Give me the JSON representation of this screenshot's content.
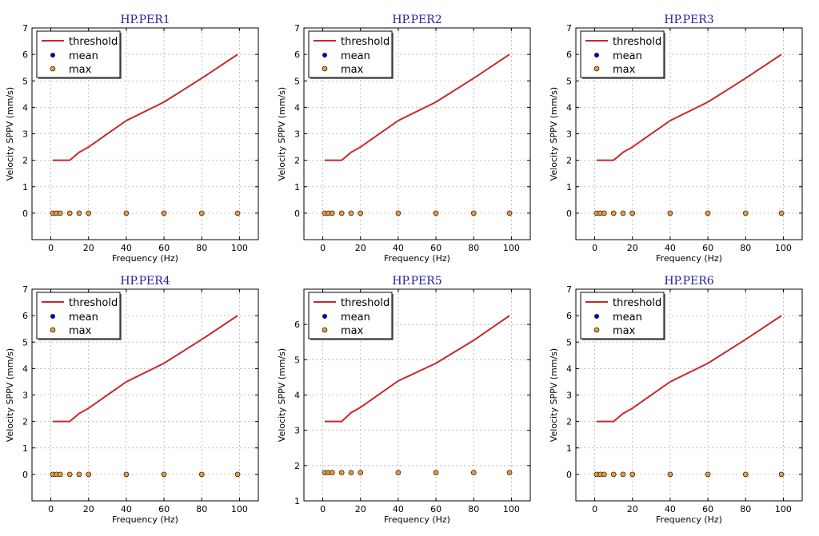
{
  "colors": {
    "threshold": "#c8282a",
    "mean": "#0b0b8c",
    "max": "#e69a3a",
    "title": "#1f1f9e",
    "grid": "#b0b0b0"
  },
  "chart_data": [
    {
      "type": "line",
      "title": "HP.PER1",
      "xlabel": "Frequency (Hz)",
      "ylabel": "Velocity SPPV (mm/s)",
      "xlim": [
        -10,
        110
      ],
      "ylim": [
        -1,
        7
      ],
      "xticks": [
        "0",
        "20",
        "40",
        "60",
        "80",
        "100"
      ],
      "xtick_values": [
        0,
        20,
        40,
        60,
        80,
        100
      ],
      "yticks": [
        "0",
        "1",
        "2",
        "3",
        "4",
        "5",
        "6",
        "7"
      ],
      "ytick_values": [
        0,
        1,
        2,
        3,
        4,
        5,
        6,
        7
      ],
      "grid": true,
      "legend_position": "top-left",
      "series": [
        {
          "name": "threshold",
          "kind": "line",
          "x": [
            1,
            10,
            15,
            20,
            40,
            60,
            80,
            99
          ],
          "y": [
            2.0,
            2.0,
            2.3,
            2.5,
            3.5,
            4.2,
            5.1,
            6.0
          ]
        },
        {
          "name": "mean",
          "kind": "scatter",
          "x": [
            1,
            3,
            5,
            10,
            15,
            20,
            40,
            60,
            80,
            99
          ],
          "y": [
            0,
            0,
            0,
            0,
            0,
            0,
            0,
            0,
            0,
            0
          ]
        },
        {
          "name": "max",
          "kind": "scatter",
          "x": [
            1,
            3,
            5,
            10,
            15,
            20,
            40,
            60,
            80,
            99
          ],
          "y": [
            0,
            0,
            0,
            0,
            0,
            0,
            0,
            0,
            0,
            0
          ]
        }
      ]
    },
    {
      "type": "line",
      "title": "HP.PER2",
      "xlabel": "Frequency (Hz)",
      "ylabel": "Velocity SPPV (mm/s)",
      "xlim": [
        -10,
        110
      ],
      "ylim": [
        -1,
        7
      ],
      "xticks": [
        "0",
        "20",
        "40",
        "60",
        "80",
        "100"
      ],
      "xtick_values": [
        0,
        20,
        40,
        60,
        80,
        100
      ],
      "yticks": [
        "0",
        "1",
        "2",
        "3",
        "4",
        "5",
        "6",
        "7"
      ],
      "ytick_values": [
        0,
        1,
        2,
        3,
        4,
        5,
        6,
        7
      ],
      "grid": true,
      "legend_position": "top-left",
      "series": [
        {
          "name": "threshold",
          "kind": "line",
          "x": [
            1,
            10,
            15,
            20,
            40,
            60,
            80,
            99
          ],
          "y": [
            2.0,
            2.0,
            2.3,
            2.5,
            3.5,
            4.2,
            5.1,
            6.0
          ]
        },
        {
          "name": "mean",
          "kind": "scatter",
          "x": [
            1,
            3,
            5,
            10,
            15,
            20,
            40,
            60,
            80,
            99
          ],
          "y": [
            0,
            0,
            0,
            0,
            0,
            0,
            0,
            0,
            0,
            0
          ]
        },
        {
          "name": "max",
          "kind": "scatter",
          "x": [
            1,
            3,
            5,
            10,
            15,
            20,
            40,
            60,
            80,
            99
          ],
          "y": [
            0,
            0,
            0,
            0,
            0,
            0,
            0,
            0,
            0,
            0
          ]
        }
      ]
    },
    {
      "type": "line",
      "title": "HP.PER3",
      "xlabel": "Frequency (Hz)",
      "ylabel": "Velocity SPPV (mm/s)",
      "xlim": [
        -10,
        110
      ],
      "ylim": [
        -1,
        7
      ],
      "xticks": [
        "0",
        "20",
        "40",
        "60",
        "80",
        "100"
      ],
      "xtick_values": [
        0,
        20,
        40,
        60,
        80,
        100
      ],
      "yticks": [
        "0",
        "1",
        "2",
        "3",
        "4",
        "5",
        "6",
        "7"
      ],
      "ytick_values": [
        0,
        1,
        2,
        3,
        4,
        5,
        6,
        7
      ],
      "grid": true,
      "legend_position": "top-left",
      "series": [
        {
          "name": "threshold",
          "kind": "line",
          "x": [
            1,
            10,
            15,
            20,
            40,
            60,
            80,
            99
          ],
          "y": [
            2.0,
            2.0,
            2.3,
            2.5,
            3.5,
            4.2,
            5.1,
            6.0
          ]
        },
        {
          "name": "mean",
          "kind": "scatter",
          "x": [
            1,
            3,
            5,
            10,
            15,
            20,
            40,
            60,
            80,
            99
          ],
          "y": [
            0,
            0,
            0,
            0,
            0,
            0,
            0,
            0,
            0,
            0
          ]
        },
        {
          "name": "max",
          "kind": "scatter",
          "x": [
            1,
            3,
            5,
            10,
            15,
            20,
            40,
            60,
            80,
            99
          ],
          "y": [
            0,
            0,
            0,
            0,
            0,
            0,
            0,
            0,
            0,
            0
          ]
        }
      ]
    },
    {
      "type": "line",
      "title": "HP.PER4",
      "xlabel": "Frequency (Hz)",
      "ylabel": "Velocity SPPV (mm/s)",
      "xlim": [
        -10,
        110
      ],
      "ylim": [
        -1,
        7
      ],
      "xticks": [
        "0",
        "20",
        "40",
        "60",
        "80",
        "100"
      ],
      "xtick_values": [
        0,
        20,
        40,
        60,
        80,
        100
      ],
      "yticks": [
        "0",
        "1",
        "2",
        "3",
        "4",
        "5",
        "6",
        "7"
      ],
      "ytick_values": [
        0,
        1,
        2,
        3,
        4,
        5,
        6,
        7
      ],
      "grid": true,
      "legend_position": "top-left",
      "series": [
        {
          "name": "threshold",
          "kind": "line",
          "x": [
            1,
            10,
            15,
            20,
            40,
            60,
            80,
            99
          ],
          "y": [
            2.0,
            2.0,
            2.3,
            2.5,
            3.5,
            4.2,
            5.1,
            6.0
          ]
        },
        {
          "name": "mean",
          "kind": "scatter",
          "x": [
            1,
            3,
            5,
            10,
            15,
            20,
            40,
            60,
            80,
            99
          ],
          "y": [
            0,
            0,
            0,
            0,
            0,
            0,
            0,
            0,
            0,
            0
          ]
        },
        {
          "name": "max",
          "kind": "scatter",
          "x": [
            1,
            3,
            5,
            10,
            15,
            20,
            40,
            60,
            80,
            99
          ],
          "y": [
            0,
            0,
            0,
            0,
            0,
            0,
            0,
            0,
            0,
            0
          ]
        }
      ]
    },
    {
      "type": "line",
      "title": "HP.PER5",
      "xlabel": "Frequency (Hz)",
      "ylabel": "Velocity SPPV (mm/s)",
      "xlim": [
        -10,
        110
      ],
      "ylim": [
        1,
        7
      ],
      "xticks": [
        "0",
        "20",
        "40",
        "60",
        "80",
        "100"
      ],
      "xtick_values": [
        0,
        20,
        40,
        60,
        80,
        100
      ],
      "yticks": [
        "1",
        "2",
        "3",
        "4",
        "5",
        "6"
      ],
      "ytick_values": [
        1,
        2,
        3,
        4,
        5,
        6
      ],
      "grid": true,
      "legend_position": "top-left",
      "series": [
        {
          "name": "threshold",
          "kind": "line",
          "x": [
            1,
            10,
            15,
            20,
            40,
            60,
            80,
            99
          ],
          "y": [
            3.25,
            3.25,
            3.5,
            3.65,
            4.4,
            4.9,
            5.55,
            6.25
          ]
        },
        {
          "name": "mean",
          "kind": "scatter",
          "x": [
            1,
            3,
            5,
            10,
            15,
            20,
            40,
            60,
            80,
            99
          ],
          "y": [
            1.8,
            1.8,
            1.8,
            1.8,
            1.8,
            1.8,
            1.8,
            1.8,
            1.8,
            1.8
          ]
        },
        {
          "name": "max",
          "kind": "scatter",
          "x": [
            1,
            3,
            5,
            10,
            15,
            20,
            40,
            60,
            80,
            99
          ],
          "y": [
            1.8,
            1.8,
            1.8,
            1.8,
            1.8,
            1.8,
            1.8,
            1.8,
            1.8,
            1.8
          ]
        }
      ]
    },
    {
      "type": "line",
      "title": "HP.PER6",
      "xlabel": "Frequency (Hz)",
      "ylabel": "Velocity SPPV (mm/s)",
      "xlim": [
        -10,
        110
      ],
      "ylim": [
        -1,
        7
      ],
      "xticks": [
        "0",
        "20",
        "40",
        "60",
        "80",
        "100"
      ],
      "xtick_values": [
        0,
        20,
        40,
        60,
        80,
        100
      ],
      "yticks": [
        "0",
        "1",
        "2",
        "3",
        "4",
        "5",
        "6",
        "7"
      ],
      "ytick_values": [
        0,
        1,
        2,
        3,
        4,
        5,
        6,
        7
      ],
      "grid": true,
      "legend_position": "top-left",
      "series": [
        {
          "name": "threshold",
          "kind": "line",
          "x": [
            1,
            10,
            15,
            20,
            40,
            60,
            80,
            99
          ],
          "y": [
            2.0,
            2.0,
            2.3,
            2.5,
            3.5,
            4.2,
            5.1,
            6.0
          ]
        },
        {
          "name": "mean",
          "kind": "scatter",
          "x": [
            1,
            3,
            5,
            10,
            15,
            20,
            40,
            60,
            80,
            99
          ],
          "y": [
            0,
            0,
            0,
            0,
            0,
            0,
            0,
            0,
            0,
            0
          ]
        },
        {
          "name": "max",
          "kind": "scatter",
          "x": [
            1,
            3,
            5,
            10,
            15,
            20,
            40,
            60,
            80,
            99
          ],
          "y": [
            0,
            0,
            0,
            0,
            0,
            0,
            0,
            0,
            0,
            0
          ]
        }
      ]
    }
  ]
}
